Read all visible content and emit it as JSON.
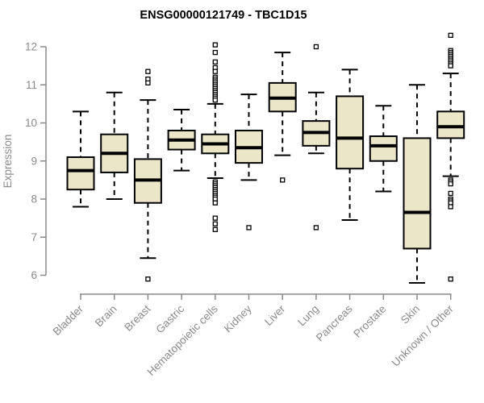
{
  "chart_data": {
    "type": "boxplot",
    "title": "ENSG00000121749 - TBC1D15",
    "xlabel": "",
    "ylabel": "Expression",
    "ylim": [
      6,
      12
    ],
    "yticks": [
      6,
      7,
      8,
      9,
      10,
      11,
      12
    ],
    "grid": false,
    "legend": "none",
    "colors": {
      "box_fill": "#ECE6C9",
      "box_border": "#000000",
      "median": "#000000",
      "whisker": "#000000",
      "outlier": "#000000",
      "axis": "#8a8a8a",
      "tick_text": "#8a8a8a",
      "title": "#000000",
      "background": "#ffffff"
    },
    "categories": [
      "Bladder",
      "Brain",
      "Breast",
      "Gastric",
      "Hematopoietic cells",
      "Kidney",
      "Liver",
      "Lung",
      "Pancreas",
      "Prostate",
      "Skin",
      "Unknown / Other"
    ],
    "series": [
      {
        "category": "Bladder",
        "low": 7.8,
        "q1": 8.25,
        "median": 8.75,
        "q3": 9.1,
        "high": 10.3,
        "outliers": []
      },
      {
        "category": "Brain",
        "low": 8.0,
        "q1": 8.7,
        "median": 9.2,
        "q3": 9.7,
        "high": 10.8,
        "outliers": []
      },
      {
        "category": "Breast",
        "low": 6.45,
        "q1": 7.9,
        "median": 8.5,
        "q3": 9.05,
        "high": 10.6,
        "outliers": [
          11.35,
          11.15,
          11.05,
          5.9
        ]
      },
      {
        "category": "Gastric",
        "low": 8.75,
        "q1": 9.3,
        "median": 9.55,
        "q3": 9.8,
        "high": 10.35,
        "outliers": []
      },
      {
        "category": "Hematopoietic cells",
        "low": 8.55,
        "q1": 9.2,
        "median": 9.45,
        "q3": 9.7,
        "high": 10.5,
        "outliers": [
          12.05,
          11.85,
          11.6,
          11.45,
          11.35,
          11.2,
          11.15,
          11.1,
          11.05,
          11.0,
          10.95,
          10.9,
          10.85,
          10.8,
          10.75,
          10.7,
          10.65,
          10.6,
          8.45,
          8.4,
          8.35,
          8.3,
          8.25,
          8.2,
          8.15,
          8.1,
          8.05,
          8.0,
          7.9,
          7.5,
          7.35,
          7.2
        ]
      },
      {
        "category": "Kidney",
        "low": 8.5,
        "q1": 8.95,
        "median": 9.35,
        "q3": 9.8,
        "high": 10.75,
        "outliers": [
          7.25
        ]
      },
      {
        "category": "Liver",
        "low": 9.15,
        "q1": 10.3,
        "median": 10.65,
        "q3": 11.05,
        "high": 11.85,
        "outliers": [
          8.5
        ]
      },
      {
        "category": "Lung",
        "low": 9.2,
        "q1": 9.4,
        "median": 9.75,
        "q3": 10.05,
        "high": 10.8,
        "outliers": [
          12.0,
          7.25
        ]
      },
      {
        "category": "Pancreas",
        "low": 7.45,
        "q1": 8.8,
        "median": 9.6,
        "q3": 10.7,
        "high": 11.4,
        "outliers": []
      },
      {
        "category": "Prostate",
        "low": 8.2,
        "q1": 9.0,
        "median": 9.4,
        "q3": 9.65,
        "high": 10.45,
        "outliers": []
      },
      {
        "category": "Skin",
        "low": 5.8,
        "q1": 6.7,
        "median": 7.65,
        "q3": 9.6,
        "high": 11.0,
        "outliers": []
      },
      {
        "category": "Unknown / Other",
        "low": 8.6,
        "q1": 9.6,
        "median": 9.9,
        "q3": 10.3,
        "high": 11.3,
        "outliers": [
          12.3,
          11.9,
          11.85,
          11.8,
          11.75,
          11.7,
          11.65,
          11.6,
          11.55,
          11.5,
          8.5,
          8.45,
          8.4,
          8.15,
          8.0,
          7.95,
          7.9,
          7.8,
          5.9
        ]
      }
    ]
  }
}
